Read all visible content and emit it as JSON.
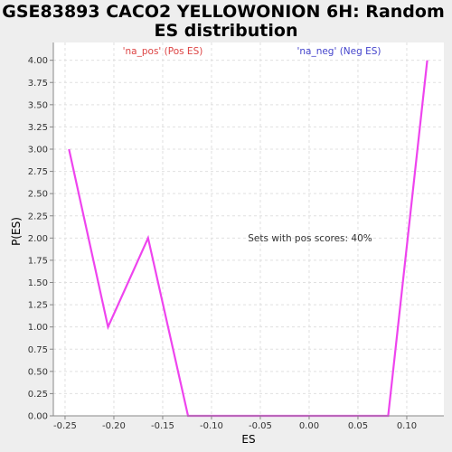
{
  "chart_data": {
    "type": "line",
    "title_line1": "GSE83893 CACO2 YELLOWONION 6H: Random",
    "title_line2": "ES distribution",
    "xlabel": "ES",
    "ylabel": "P(ES)",
    "xlim": [
      -0.262,
      0.138
    ],
    "ylim": [
      0,
      4.2
    ],
    "xticks": [
      -0.25,
      -0.2,
      -0.15,
      -0.1,
      -0.05,
      0.0,
      0.05,
      0.1
    ],
    "xtick_labels": [
      "-0.25",
      "-0.20",
      "-0.15",
      "-0.10",
      "-0.05",
      "0.00",
      "0.05",
      "0.10"
    ],
    "yticks": [
      0,
      0.25,
      0.5,
      0.75,
      1.0,
      1.25,
      1.5,
      1.75,
      2.0,
      2.25,
      2.5,
      2.75,
      3.0,
      3.25,
      3.5,
      3.75,
      4.0
    ],
    "ytick_labels": [
      "0.00",
      "0.25",
      "0.50",
      "0.75",
      "1.00",
      "1.25",
      "1.50",
      "1.75",
      "2.00",
      "2.25",
      "2.50",
      "2.75",
      "3.00",
      "3.25",
      "3.50",
      "3.75",
      "4.00"
    ],
    "grid": true,
    "series": [
      {
        "color": "#ee44ee",
        "x": [
          -0.246,
          -0.206,
          -0.165,
          -0.124,
          0.081,
          0.121
        ],
        "y": [
          3.0,
          1.0,
          2.0,
          0.0,
          0.0,
          4.0
        ]
      }
    ],
    "legend": {
      "pos_label": "'na_pos' (Pos ES)",
      "pos_color": "#dd4444",
      "neg_label": "'na_neg' (Neg ES)",
      "neg_color": "#4444cc"
    },
    "annotation": "Sets with pos scores: 40%"
  },
  "colors": {
    "background": "#eeeeee",
    "plot_background": "#ffffff",
    "grid": "#dddddd",
    "axis": "#888888"
  }
}
